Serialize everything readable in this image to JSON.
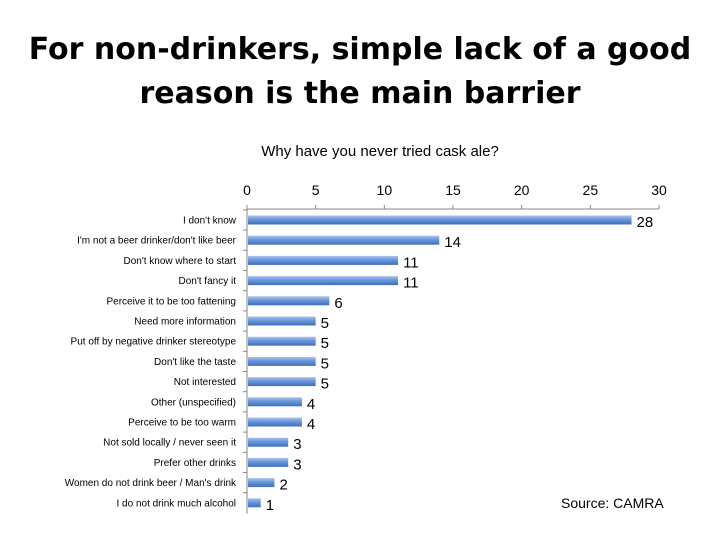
{
  "title_line1": "For non-drinkers, simple lack of a good",
  "title_line2": "reason is the main barrier",
  "source": "Source: CAMRA",
  "chart_data": {
    "type": "bar",
    "orientation": "horizontal",
    "title": "Why have you never tried cask ale?",
    "xlim": [
      0,
      30
    ],
    "ticks": [
      0,
      5,
      10,
      15,
      20,
      25,
      30
    ],
    "categories": [
      "I don't know",
      "I'm not a beer drinker/don't like beer",
      "Don't know where to start",
      "Don't fancy it",
      "Perceive it to be too fattening",
      "Need more information",
      "Put off by negative drinker stereotype",
      "Don't like the taste",
      "Not interested",
      "Other (unspecified)",
      "Perceive to be too warm",
      "Not sold locally / never seen it",
      "Prefer other drinks",
      "Women do not drink beer / Man's drink",
      "I do not drink much alcohol"
    ],
    "values": [
      28,
      14,
      11,
      11,
      6,
      5,
      5,
      5,
      5,
      4,
      4,
      3,
      3,
      2,
      1
    ],
    "bar_color": "#4a7cc9",
    "grid": false,
    "axis_position": "top"
  }
}
